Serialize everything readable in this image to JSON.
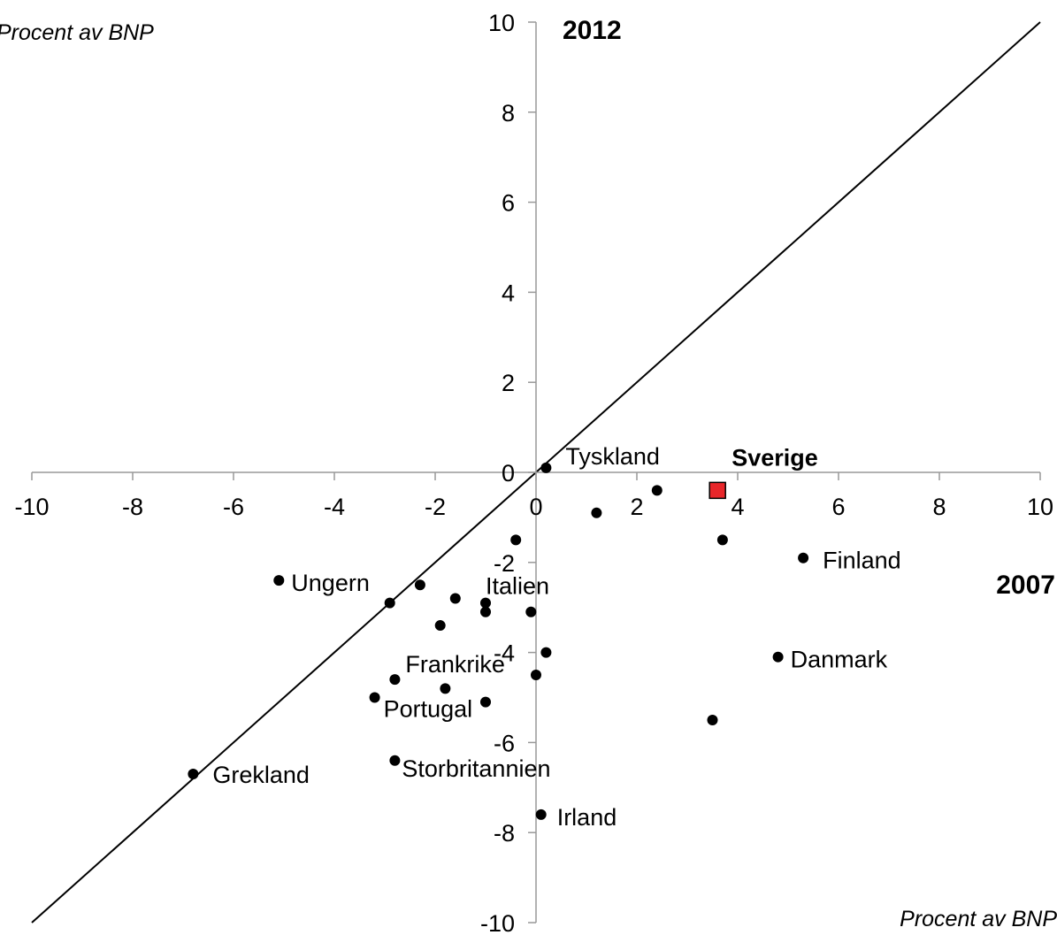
{
  "chart_data": {
    "type": "scatter",
    "xlabel": "Procent av BNP",
    "ylabel": "Procent av BNP",
    "x_year_label": "2007",
    "y_year_label": "2012",
    "xlim": [
      -10,
      10
    ],
    "ylim": [
      -10,
      10
    ],
    "xticks": [
      -10,
      -8,
      -6,
      -4,
      -2,
      0,
      2,
      4,
      6,
      8,
      10
    ],
    "yticks": [
      -10,
      -8,
      -6,
      -4,
      -2,
      0,
      2,
      4,
      6,
      8,
      10
    ],
    "reference_line": "y = x",
    "grid": false,
    "points": [
      {
        "x": -6.8,
        "y": -6.7,
        "label": "Grekland"
      },
      {
        "x": -5.1,
        "y": -2.4,
        "label": "Ungern"
      },
      {
        "x": -2.9,
        "y": -2.9,
        "label": ""
      },
      {
        "x": -2.3,
        "y": -2.5,
        "label": ""
      },
      {
        "x": -1.6,
        "y": -2.8,
        "label": ""
      },
      {
        "x": -1.9,
        "y": -3.4,
        "label": ""
      },
      {
        "x": -1.0,
        "y": -2.9,
        "label": "Italien"
      },
      {
        "x": -1.0,
        "y": -3.1,
        "label": ""
      },
      {
        "x": -0.1,
        "y": -3.1,
        "label": ""
      },
      {
        "x": -0.4,
        "y": -1.5,
        "label": ""
      },
      {
        "x": 1.2,
        "y": -0.9,
        "label": ""
      },
      {
        "x": 2.4,
        "y": -0.4,
        "label": ""
      },
      {
        "x": 0.2,
        "y": 0.1,
        "label": "Tyskland"
      },
      {
        "x": 3.7,
        "y": -1.5,
        "label": ""
      },
      {
        "x": 5.3,
        "y": -1.9,
        "label": "Finland"
      },
      {
        "x": 4.8,
        "y": -4.1,
        "label": "Danmark"
      },
      {
        "x": 3.5,
        "y": -5.5,
        "label": ""
      },
      {
        "x": 0.2,
        "y": -4.0,
        "label": ""
      },
      {
        "x": 0.0,
        "y": -4.5,
        "label": ""
      },
      {
        "x": -2.8,
        "y": -4.6,
        "label": "Frankrike"
      },
      {
        "x": -1.8,
        "y": -4.8,
        "label": ""
      },
      {
        "x": -3.2,
        "y": -5.0,
        "label": "Portugal"
      },
      {
        "x": -1.0,
        "y": -5.1,
        "label": ""
      },
      {
        "x": -2.8,
        "y": -6.4,
        "label": "Storbritannien"
      },
      {
        "x": 0.1,
        "y": -7.6,
        "label": "Irland"
      }
    ],
    "highlight": {
      "x": 3.6,
      "y": -0.4,
      "label": "Sverige",
      "color": "#e8262a"
    }
  }
}
